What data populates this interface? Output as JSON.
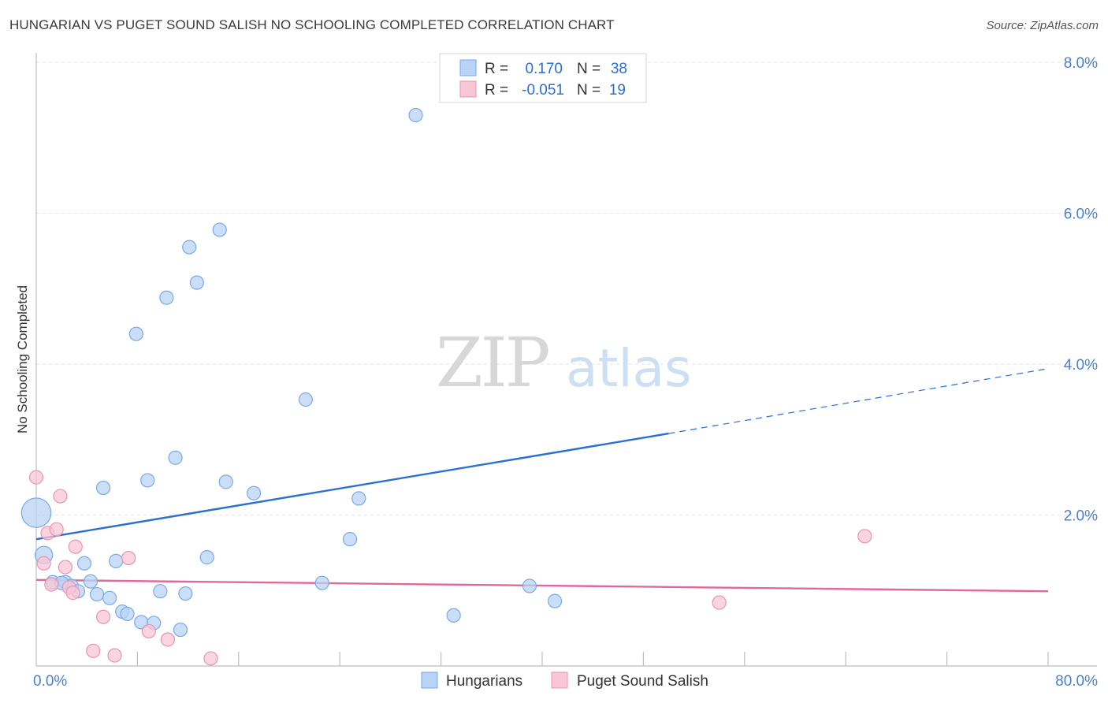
{
  "header": {
    "title": "HUNGARIAN VS PUGET SOUND SALISH NO SCHOOLING COMPLETED CORRELATION CHART",
    "source": "Source: ZipAtlas.com"
  },
  "watermark": {
    "part1": "ZIP",
    "part2": "atlas"
  },
  "legend_box": {
    "rows": [
      {
        "r_label": "R =",
        "r_value": "0.170",
        "n_label": "N =",
        "n_value": "38"
      },
      {
        "r_label": "R =",
        "r_value": "-0.051",
        "n_label": "N =",
        "n_value": "19"
      }
    ]
  },
  "colors": {
    "blue_fill": "#b8d3f5",
    "blue_stroke": "#7aaae6",
    "blue_line": "#2a6fd1",
    "pink_fill": "#f8c6d6",
    "pink_stroke": "#ea94b2",
    "pink_line": "#e0699a",
    "tick_text": "#4a7fd4"
  },
  "chart_data": {
    "type": "scatter",
    "title": "HUNGARIAN VS PUGET SOUND SALISH NO SCHOOLING COMPLETED CORRELATION CHART",
    "xlabel": "",
    "ylabel": "No Schooling Completed",
    "xlim": [
      0,
      80
    ],
    "ylim": [
      0,
      8
    ],
    "x_tick_labels": [
      {
        "value": 0,
        "label": "0.0%"
      },
      {
        "value": 80,
        "label": "80.0%"
      }
    ],
    "y_tick_labels": [
      {
        "value": 2,
        "label": "2.0%"
      },
      {
        "value": 4,
        "label": "4.0%"
      },
      {
        "value": 6,
        "label": "6.0%"
      },
      {
        "value": 8,
        "label": "8.0%"
      }
    ],
    "legend": {
      "position": "bottom-center",
      "entries": [
        "Hungarians",
        "Puget Sound Salish"
      ]
    },
    "series": [
      {
        "name": "Hungarians",
        "R": 0.17,
        "N": 38,
        "trend": {
          "x": [
            0,
            50
          ],
          "y": [
            1.68,
            3.08
          ],
          "dashed_to": [
            80,
            3.94
          ]
        },
        "points": [
          {
            "x": 0.0,
            "y": 2.03,
            "s": 2.2
          },
          {
            "x": 0.6,
            "y": 1.47,
            "s": 1.3
          },
          {
            "x": 1.3,
            "y": 1.11,
            "s": 1
          },
          {
            "x": 2.3,
            "y": 1.11,
            "s": 1
          },
          {
            "x": 2.8,
            "y": 1.06,
            "s": 1
          },
          {
            "x": 3.3,
            "y": 0.99,
            "s": 1
          },
          {
            "x": 3.8,
            "y": 1.36,
            "s": 1
          },
          {
            "x": 4.3,
            "y": 1.12,
            "s": 1
          },
          {
            "x": 4.8,
            "y": 0.95,
            "s": 1
          },
          {
            "x": 5.3,
            "y": 2.36,
            "s": 1
          },
          {
            "x": 5.8,
            "y": 0.9,
            "s": 1
          },
          {
            "x": 6.3,
            "y": 1.39,
            "s": 1
          },
          {
            "x": 6.8,
            "y": 0.72,
            "s": 1
          },
          {
            "x": 7.2,
            "y": 0.69,
            "s": 1
          },
          {
            "x": 7.9,
            "y": 4.4,
            "s": 1
          },
          {
            "x": 8.3,
            "y": 0.58,
            "s": 1
          },
          {
            "x": 8.8,
            "y": 2.46,
            "s": 1
          },
          {
            "x": 9.3,
            "y": 0.57,
            "s": 1
          },
          {
            "x": 9.8,
            "y": 0.99,
            "s": 1
          },
          {
            "x": 10.3,
            "y": 4.88,
            "s": 1
          },
          {
            "x": 11.0,
            "y": 2.76,
            "s": 1
          },
          {
            "x": 11.4,
            "y": 0.48,
            "s": 1
          },
          {
            "x": 11.8,
            "y": 0.96,
            "s": 1
          },
          {
            "x": 12.1,
            "y": 5.55,
            "s": 1
          },
          {
            "x": 12.7,
            "y": 5.08,
            "s": 1
          },
          {
            "x": 13.5,
            "y": 1.44,
            "s": 1
          },
          {
            "x": 14.5,
            "y": 5.78,
            "s": 1
          },
          {
            "x": 15.0,
            "y": 2.44,
            "s": 1
          },
          {
            "x": 17.2,
            "y": 2.29,
            "s": 1
          },
          {
            "x": 21.3,
            "y": 3.53,
            "s": 1
          },
          {
            "x": 22.6,
            "y": 1.1,
            "s": 1
          },
          {
            "x": 24.8,
            "y": 1.68,
            "s": 1
          },
          {
            "x": 25.5,
            "y": 2.22,
            "s": 1
          },
          {
            "x": 30.0,
            "y": 7.3,
            "s": 1
          },
          {
            "x": 33.0,
            "y": 0.67,
            "s": 1
          },
          {
            "x": 39.0,
            "y": 1.06,
            "s": 1
          },
          {
            "x": 41.0,
            "y": 0.86,
            "s": 1
          },
          {
            "x": 2.0,
            "y": 1.1,
            "s": 1
          }
        ]
      },
      {
        "name": "Puget Sound Salish",
        "R": -0.051,
        "N": 19,
        "trend": {
          "x": [
            0,
            80
          ],
          "y": [
            1.14,
            0.99
          ]
        },
        "points": [
          {
            "x": 0.0,
            "y": 2.5,
            "s": 1
          },
          {
            "x": 0.6,
            "y": 1.36,
            "s": 1
          },
          {
            "x": 0.9,
            "y": 1.76,
            "s": 1
          },
          {
            "x": 1.2,
            "y": 1.08,
            "s": 1
          },
          {
            "x": 1.6,
            "y": 1.81,
            "s": 1
          },
          {
            "x": 1.9,
            "y": 2.25,
            "s": 1
          },
          {
            "x": 2.3,
            "y": 1.31,
            "s": 1
          },
          {
            "x": 2.6,
            "y": 1.04,
            "s": 1
          },
          {
            "x": 2.9,
            "y": 0.97,
            "s": 1
          },
          {
            "x": 3.1,
            "y": 1.58,
            "s": 1
          },
          {
            "x": 5.3,
            "y": 0.65,
            "s": 1
          },
          {
            "x": 4.5,
            "y": 0.2,
            "s": 1
          },
          {
            "x": 6.2,
            "y": 0.14,
            "s": 1
          },
          {
            "x": 7.3,
            "y": 1.43,
            "s": 1
          },
          {
            "x": 8.9,
            "y": 0.46,
            "s": 1
          },
          {
            "x": 10.4,
            "y": 0.35,
            "s": 1
          },
          {
            "x": 13.8,
            "y": 0.1,
            "s": 1
          },
          {
            "x": 54.0,
            "y": 0.84,
            "s": 1
          },
          {
            "x": 65.5,
            "y": 1.72,
            "s": 1
          }
        ]
      }
    ]
  }
}
